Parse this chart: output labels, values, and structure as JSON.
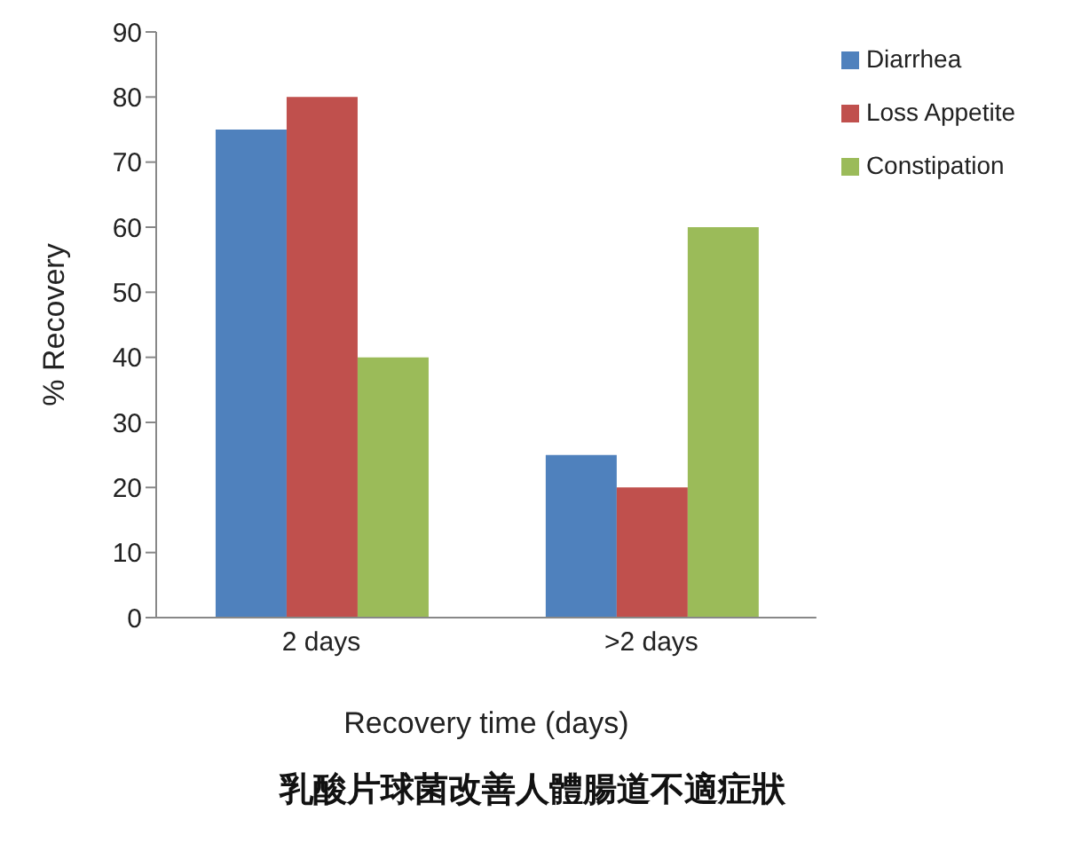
{
  "chart_data": {
    "type": "bar",
    "title": "乳酸片球菌改善人體腸道不適症狀",
    "xlabel": "Recovery time (days)",
    "ylabel": "% Recovery",
    "categories": [
      "2 days",
      ">2 days"
    ],
    "series": [
      {
        "name": "Diarrhea",
        "color": "#4f81bd",
        "values": [
          75,
          25
        ]
      },
      {
        "name": "Loss Appetite",
        "color": "#c0504d",
        "values": [
          80,
          20
        ]
      },
      {
        "name": "Constipation",
        "color": "#9bbb59",
        "values": [
          40,
          60
        ]
      }
    ],
    "ylim": [
      0,
      90
    ],
    "yticks": [
      0,
      10,
      20,
      30,
      40,
      50,
      60,
      70,
      80,
      90
    ],
    "legend": "top right"
  }
}
